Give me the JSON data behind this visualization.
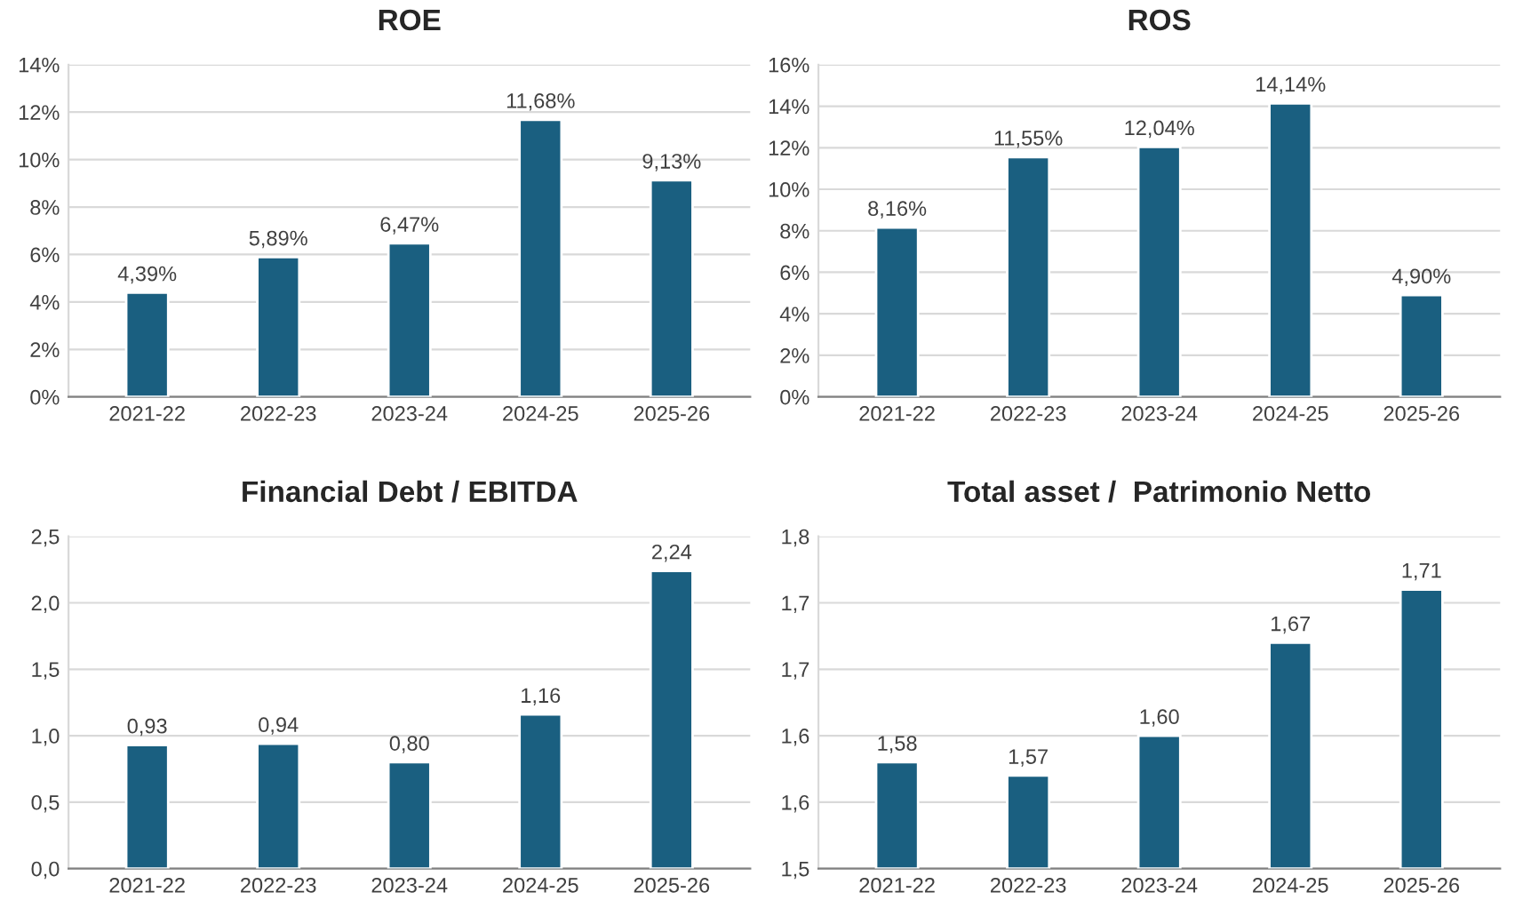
{
  "chart_data": [
    {
      "type": "bar",
      "title": "ROE",
      "categories": [
        "2021-22",
        "2022-23",
        "2023-24",
        "2024-25",
        "2025-26"
      ],
      "values": [
        4.39,
        5.89,
        6.47,
        11.68,
        9.13
      ],
      "value_labels": [
        "4,39%",
        "5,89%",
        "6,47%",
        "11,68%",
        "9,13%"
      ],
      "color": "#1a5f80",
      "ylim": [
        0,
        14
      ],
      "yticks": [
        {
          "value": 0,
          "label": "0%"
        },
        {
          "value": 2,
          "label": "2%"
        },
        {
          "value": 4,
          "label": "4%"
        },
        {
          "value": 6,
          "label": "6%"
        },
        {
          "value": 8,
          "label": "8%"
        },
        {
          "value": 10,
          "label": "10%"
        },
        {
          "value": 12,
          "label": "12%"
        },
        {
          "value": 14,
          "label": "14%"
        }
      ],
      "grid": "y"
    },
    {
      "type": "bar",
      "title": "ROS",
      "categories": [
        "2021-22",
        "2022-23",
        "2023-24",
        "2024-25",
        "2025-26"
      ],
      "values": [
        8.16,
        11.55,
        12.04,
        14.14,
        4.9
      ],
      "value_labels": [
        "8,16%",
        "11,55%",
        "12,04%",
        "14,14%",
        "4,90%"
      ],
      "color": "#1a5f80",
      "ylim": [
        0,
        16
      ],
      "yticks": [
        {
          "value": 0,
          "label": "0%"
        },
        {
          "value": 2,
          "label": "2%"
        },
        {
          "value": 4,
          "label": "4%"
        },
        {
          "value": 6,
          "label": "6%"
        },
        {
          "value": 8,
          "label": "8%"
        },
        {
          "value": 10,
          "label": "10%"
        },
        {
          "value": 12,
          "label": "12%"
        },
        {
          "value": 14,
          "label": "14%"
        },
        {
          "value": 16,
          "label": "16%"
        }
      ],
      "grid": "y"
    },
    {
      "type": "bar",
      "title": "Financial Debt / EBITDA",
      "categories": [
        "2021-22",
        "2022-23",
        "2023-24",
        "2024-25",
        "2025-26"
      ],
      "values": [
        0.93,
        0.94,
        0.8,
        1.16,
        2.24
      ],
      "value_labels": [
        "0,93",
        "0,94",
        "0,80",
        "1,16",
        "2,24"
      ],
      "color": "#1a5f80",
      "ylim": [
        0,
        2.5
      ],
      "yticks": [
        {
          "value": 0,
          "label": "0,0"
        },
        {
          "value": 0.5,
          "label": "0,5"
        },
        {
          "value": 1.0,
          "label": "1,0"
        },
        {
          "value": 1.5,
          "label": "1,5"
        },
        {
          "value": 2.0,
          "label": "2,0"
        },
        {
          "value": 2.5,
          "label": "2,5"
        }
      ],
      "grid": "y"
    },
    {
      "type": "bar",
      "title": "Total asset /  Patrimonio Netto",
      "categories": [
        "2021-22",
        "2022-23",
        "2023-24",
        "2024-25",
        "2025-26"
      ],
      "values": [
        1.58,
        1.57,
        1.6,
        1.67,
        1.71
      ],
      "value_labels": [
        "1,58",
        "1,57",
        "1,60",
        "1,67",
        "1,71"
      ],
      "color": "#1a5f80",
      "ylim": [
        1.5,
        1.75
      ],
      "yticks": [
        {
          "value": 1.5,
          "label": "1,5"
        },
        {
          "value": 1.55,
          "label": "1,6"
        },
        {
          "value": 1.6,
          "label": "1,6"
        },
        {
          "value": 1.65,
          "label": "1,7"
        },
        {
          "value": 1.7,
          "label": "1,7"
        },
        {
          "value": 1.75,
          "label": "1,8"
        }
      ],
      "grid": "y"
    }
  ]
}
